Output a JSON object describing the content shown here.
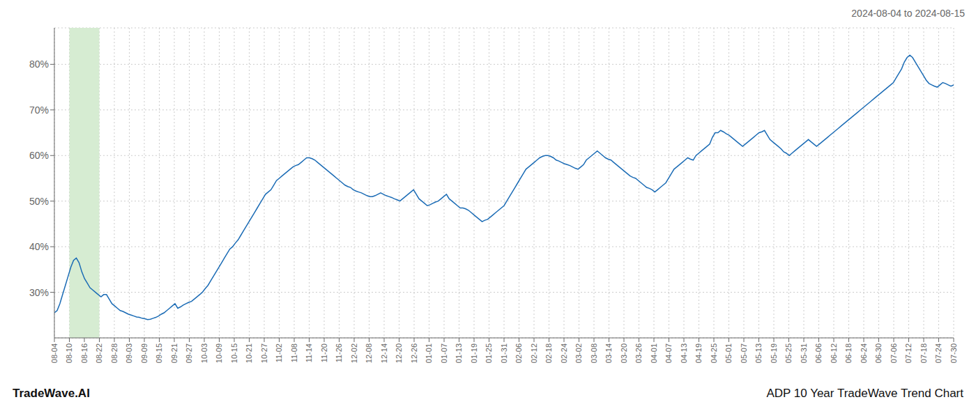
{
  "chart_data": {
    "type": "line",
    "title": "ADP 10 Year TradeWave Trend Chart",
    "subtitle": "2024-08-04 to 2024-08-15",
    "annotations": [
      "TradeWave.AI"
    ],
    "grid": true,
    "highlight": {
      "from": "08-10",
      "to": "08-22",
      "color": "#d6ecd2"
    },
    "xlim": [
      0,
      60
    ],
    "xticks": [
      {
        "value": 0,
        "label": "08-04"
      },
      {
        "value": 1,
        "label": "08-10"
      },
      {
        "value": 2,
        "label": "08-16"
      },
      {
        "value": 3,
        "label": "08-22"
      },
      {
        "value": 4,
        "label": "08-28"
      },
      {
        "value": 5,
        "label": "09-03"
      },
      {
        "value": 6,
        "label": "09-09"
      },
      {
        "value": 7,
        "label": "09-15"
      },
      {
        "value": 8,
        "label": "09-21"
      },
      {
        "value": 9,
        "label": "09-27"
      },
      {
        "value": 10,
        "label": "10-03"
      },
      {
        "value": 11,
        "label": "10-09"
      },
      {
        "value": 12,
        "label": "10-15"
      },
      {
        "value": 13,
        "label": "10-21"
      },
      {
        "value": 14,
        "label": "10-27"
      },
      {
        "value": 15,
        "label": "11-02"
      },
      {
        "value": 16,
        "label": "11-08"
      },
      {
        "value": 17,
        "label": "11-14"
      },
      {
        "value": 18,
        "label": "11-20"
      },
      {
        "value": 19,
        "label": "11-26"
      },
      {
        "value": 20,
        "label": "12-02"
      },
      {
        "value": 21,
        "label": "12-08"
      },
      {
        "value": 22,
        "label": "12-14"
      },
      {
        "value": 23,
        "label": "12-20"
      },
      {
        "value": 24,
        "label": "12-26"
      },
      {
        "value": 25,
        "label": "01-01"
      },
      {
        "value": 26,
        "label": "01-07"
      },
      {
        "value": 27,
        "label": "01-13"
      },
      {
        "value": 28,
        "label": "01-19"
      },
      {
        "value": 29,
        "label": "01-25"
      },
      {
        "value": 30,
        "label": "01-31"
      },
      {
        "value": 31,
        "label": "02-06"
      },
      {
        "value": 32,
        "label": "02-12"
      },
      {
        "value": 33,
        "label": "02-18"
      },
      {
        "value": 34,
        "label": "02-24"
      },
      {
        "value": 35,
        "label": "03-02"
      },
      {
        "value": 36,
        "label": "03-08"
      },
      {
        "value": 37,
        "label": "03-14"
      },
      {
        "value": 38,
        "label": "03-20"
      },
      {
        "value": 39,
        "label": "03-26"
      },
      {
        "value": 40,
        "label": "04-01"
      },
      {
        "value": 41,
        "label": "04-07"
      },
      {
        "value": 42,
        "label": "04-13"
      },
      {
        "value": 43,
        "label": "04-19"
      },
      {
        "value": 44,
        "label": "04-25"
      },
      {
        "value": 45,
        "label": "05-01"
      },
      {
        "value": 46,
        "label": "05-07"
      },
      {
        "value": 47,
        "label": "05-13"
      },
      {
        "value": 48,
        "label": "05-19"
      },
      {
        "value": 49,
        "label": "05-25"
      },
      {
        "value": 50,
        "label": "05-31"
      },
      {
        "value": 51,
        "label": "06-06"
      },
      {
        "value": 52,
        "label": "06-12"
      },
      {
        "value": 53,
        "label": "06-18"
      },
      {
        "value": 54,
        "label": "06-24"
      },
      {
        "value": 55,
        "label": "06-30"
      },
      {
        "value": 56,
        "label": "07-06"
      },
      {
        "value": 57,
        "label": "07-12"
      },
      {
        "value": 58,
        "label": "07-18"
      },
      {
        "value": 59,
        "label": "07-24"
      },
      {
        "value": 60,
        "label": "07-30"
      }
    ],
    "ylim": [
      20,
      88
    ],
    "yticks": [
      {
        "value": 30,
        "label": "30%"
      },
      {
        "value": 40,
        "label": "40%"
      },
      {
        "value": 50,
        "label": "50%"
      },
      {
        "value": 60,
        "label": "60%"
      },
      {
        "value": 70,
        "label": "70%"
      },
      {
        "value": 80,
        "label": "80%"
      }
    ],
    "color": "#1a6bb5",
    "values": [
      25.5,
      26.0,
      27.5,
      29.5,
      31.5,
      33.5,
      35.5,
      37.0,
      37.5,
      36.5,
      34.5,
      33.0,
      32.0,
      31.0,
      30.5,
      30.0,
      29.5,
      29.0,
      29.5,
      29.5,
      28.5,
      27.5,
      27.0,
      26.5,
      26.0,
      25.8,
      25.5,
      25.2,
      25.0,
      24.8,
      24.6,
      24.5,
      24.3,
      24.2,
      24.0,
      24.1,
      24.3,
      24.5,
      24.8,
      25.2,
      25.5,
      26.0,
      26.5,
      27.0,
      27.5,
      26.5,
      26.8,
      27.2,
      27.5,
      27.8,
      28.0,
      28.5,
      29.0,
      29.5,
      30.0,
      30.8,
      31.5,
      32.5,
      33.5,
      34.5,
      35.5,
      36.5,
      37.5,
      38.5,
      39.5,
      40.0,
      40.8,
      41.5,
      42.5,
      43.5,
      44.5,
      45.5,
      46.5,
      47.5,
      48.5,
      49.5,
      50.5,
      51.5,
      52.0,
      52.5,
      53.5,
      54.5,
      55.0,
      55.5,
      56.0,
      56.5,
      57.0,
      57.5,
      57.8,
      58.0,
      58.5,
      59.0,
      59.5,
      59.5,
      59.3,
      59.0,
      58.5,
      58.0,
      57.5,
      57.0,
      56.5,
      56.0,
      55.5,
      55.0,
      54.5,
      54.0,
      53.5,
      53.2,
      53.0,
      52.5,
      52.2,
      52.0,
      51.8,
      51.5,
      51.2,
      51.0,
      51.0,
      51.2,
      51.5,
      51.8,
      51.5,
      51.2,
      51.0,
      50.8,
      50.5,
      50.3,
      50.0,
      50.5,
      51.0,
      51.5,
      52.0,
      52.5,
      51.5,
      50.5,
      50.0,
      49.5,
      49.0,
      49.2,
      49.5,
      49.8,
      50.0,
      50.5,
      51.0,
      51.5,
      50.5,
      50.0,
      49.5,
      49.0,
      48.5,
      48.5,
      48.3,
      48.0,
      47.5,
      47.0,
      46.5,
      46.0,
      45.5,
      45.8,
      46.0,
      46.5,
      47.0,
      47.5,
      48.0,
      48.5,
      49.0,
      50.0,
      51.0,
      52.0,
      53.0,
      54.0,
      55.0,
      56.0,
      57.0,
      57.5,
      58.0,
      58.5,
      59.0,
      59.5,
      59.8,
      60.0,
      60.0,
      59.8,
      59.5,
      59.0,
      58.8,
      58.5,
      58.2,
      58.0,
      57.8,
      57.5,
      57.2,
      57.0,
      57.5,
      58.0,
      59.0,
      59.5,
      60.0,
      60.5,
      61.0,
      60.5,
      60.0,
      59.5,
      59.2,
      59.0,
      58.5,
      58.0,
      57.5,
      57.0,
      56.5,
      56.0,
      55.5,
      55.2,
      55.0,
      54.5,
      54.0,
      53.5,
      53.0,
      52.8,
      52.5,
      52.0,
      52.5,
      53.0,
      53.5,
      54.0,
      55.0,
      56.0,
      57.0,
      57.5,
      58.0,
      58.5,
      59.0,
      59.5,
      59.2,
      59.0,
      60.0,
      60.5,
      61.0,
      61.5,
      62.0,
      62.5,
      64.0,
      65.0,
      65.0,
      65.5,
      65.2,
      64.8,
      64.5,
      64.0,
      63.5,
      63.0,
      62.5,
      62.0,
      62.5,
      63.0,
      63.5,
      64.0,
      64.5,
      65.0,
      65.2,
      65.5,
      64.5,
      63.5,
      63.0,
      62.5,
      62.0,
      61.5,
      60.8,
      60.5,
      60.0,
      60.5,
      61.0,
      61.5,
      62.0,
      62.5,
      63.0,
      63.5,
      63.0,
      62.5,
      62.0,
      62.5,
      63.0,
      63.5,
      64.0,
      64.5,
      65.0,
      65.5,
      66.0,
      66.5,
      67.0,
      67.5,
      68.0,
      68.5,
      69.0,
      69.5,
      70.0,
      70.5,
      71.0,
      71.5,
      72.0,
      72.5,
      73.0,
      73.5,
      74.0,
      74.5,
      75.0,
      75.5,
      76.0,
      77.0,
      78.0,
      79.0,
      80.5,
      81.5,
      82.0,
      81.5,
      80.5,
      79.5,
      78.5,
      77.5,
      76.5,
      75.8,
      75.5,
      75.2,
      75.0,
      75.5,
      76.0,
      75.8,
      75.5,
      75.2,
      75.5
    ]
  }
}
